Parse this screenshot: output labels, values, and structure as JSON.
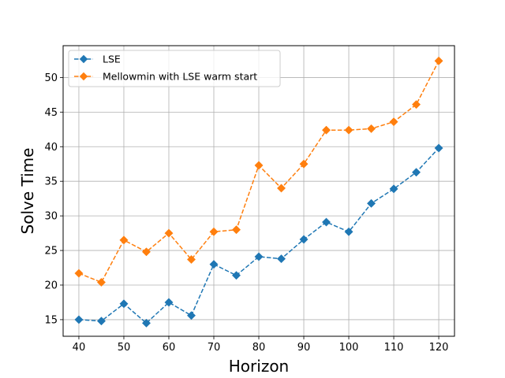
{
  "chart_data": {
    "type": "line",
    "title": "",
    "xlabel": "Horizon",
    "ylabel": "Solve Time",
    "xlim": [
      36.5,
      123.5
    ],
    "ylim": [
      12.6,
      54.6
    ],
    "x": [
      40,
      45,
      50,
      55,
      60,
      65,
      70,
      75,
      80,
      85,
      90,
      95,
      100,
      105,
      110,
      115,
      120
    ],
    "xticks": [
      40,
      50,
      60,
      70,
      80,
      90,
      100,
      110,
      120
    ],
    "yticks": [
      15,
      20,
      25,
      30,
      35,
      40,
      45,
      50
    ],
    "grid": true,
    "legend_position": "top-left",
    "series": [
      {
        "name": "LSE",
        "color": "#1f77b4",
        "marker": "diamond",
        "linestyle": "dashed",
        "values": [
          15.0,
          14.8,
          17.3,
          14.5,
          17.5,
          15.6,
          23.0,
          21.4,
          24.1,
          23.8,
          26.6,
          29.1,
          27.7,
          31.8,
          33.9,
          36.3,
          39.8
        ]
      },
      {
        "name": "Mellowmin with LSE warm start",
        "color": "#ff7f0e",
        "marker": "diamond",
        "linestyle": "dashed",
        "values": [
          21.7,
          20.4,
          26.5,
          24.8,
          27.5,
          23.7,
          27.7,
          28.0,
          37.3,
          34.0,
          37.5,
          42.4,
          42.4,
          42.6,
          43.6,
          46.1,
          52.4
        ]
      }
    ]
  }
}
